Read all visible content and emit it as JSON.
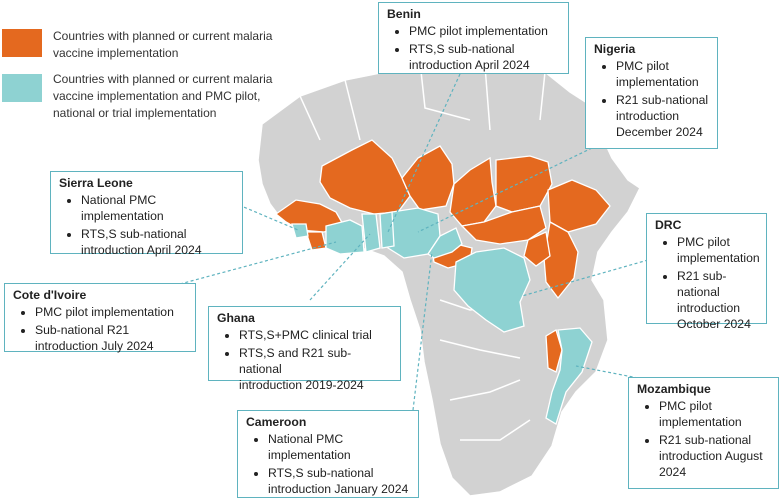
{
  "colors": {
    "vaccine": "#e4691f",
    "vaccine_pmc": "#8ed2d2",
    "other": "#d2d2d2",
    "border": "#ffffff",
    "callout_border": "#5fb3bf"
  },
  "legend": [
    {
      "color": "#e4691f",
      "label_lines": [
        "Countries with planned or current malaria",
        "vaccine implementation"
      ]
    },
    {
      "color": "#8ed2d2",
      "label_lines": [
        "Countries with planned or current malaria",
        "vaccine implementation and PMC pilot,",
        "national or trial implementation"
      ]
    }
  ],
  "callouts": {
    "benin": {
      "title": "Benin",
      "items": [
        [
          "PMC pilot implementation"
        ],
        [
          "RTS,S sub-national",
          "introduction April 2024"
        ]
      ]
    },
    "nigeria": {
      "title": "Nigeria",
      "items": [
        [
          "PMC pilot",
          "implementation"
        ],
        [
          "R21 sub-national",
          "introduction",
          "December 2024"
        ]
      ]
    },
    "sierra_leone": {
      "title": "Sierra Leone",
      "items": [
        [
          "National PMC",
          "implementation"
        ],
        [
          "RTS,S sub-national",
          "introduction April 2024"
        ]
      ]
    },
    "cote_divoire": {
      "title": "Cote d'Ivoire",
      "items": [
        [
          "PMC pilot implementation"
        ],
        [
          "Sub-national R21",
          "introduction July 2024"
        ]
      ]
    },
    "ghana": {
      "title": "Ghana",
      "items": [
        [
          "RTS,S+PMC clinical trial"
        ],
        [
          "RTS,S and R21 sub-national",
          "introduction 2019-2024"
        ]
      ]
    },
    "drc": {
      "title": "DRC",
      "items": [
        [
          "PMC pilot",
          "implementation"
        ],
        [
          "R21 sub-national",
          "introduction",
          "October 2024"
        ]
      ]
    },
    "cameroon": {
      "title": "Cameroon",
      "items": [
        [
          "National PMC",
          "implementation"
        ],
        [
          "RTS,S sub-national",
          "introduction January 2024"
        ]
      ]
    },
    "mozambique": {
      "title": "Mozambique",
      "items": [
        [
          "PMC pilot",
          "implementation"
        ],
        [
          "R21 sub-national",
          "introduction August",
          "2024"
        ]
      ]
    }
  }
}
